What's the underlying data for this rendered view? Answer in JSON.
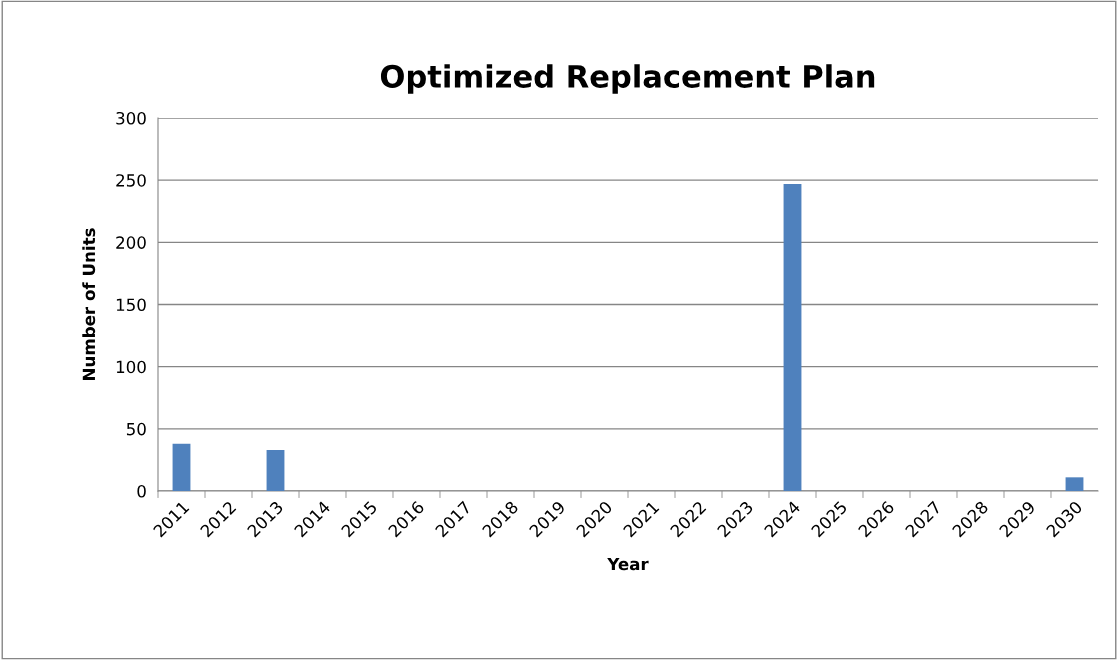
{
  "chart_data": {
    "type": "bar",
    "title": "Optimized Replacement Plan",
    "xlabel": "Year",
    "ylabel": "Number of Units",
    "categories": [
      "2011",
      "2012",
      "2013",
      "2014",
      "2015",
      "2016",
      "2017",
      "2018",
      "2019",
      "2020",
      "2021",
      "2022",
      "2023",
      "2024",
      "2025",
      "2026",
      "2027",
      "2028",
      "2029",
      "2030"
    ],
    "values": [
      38,
      0,
      33,
      0,
      0,
      0,
      0,
      0,
      0,
      0,
      0,
      0,
      0,
      247,
      0,
      0,
      0,
      0,
      0,
      11
    ],
    "color": "#4f81bd",
    "ylim": [
      0,
      300
    ],
    "yticks": [
      0,
      50,
      100,
      150,
      200,
      250,
      300
    ],
    "grid": "y",
    "legend": false
  }
}
